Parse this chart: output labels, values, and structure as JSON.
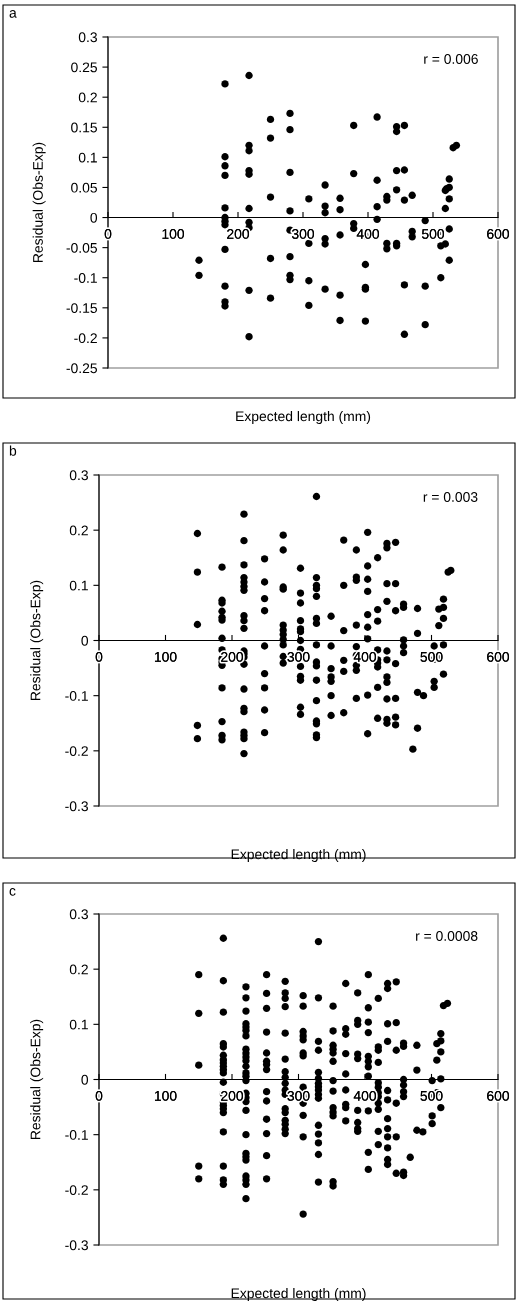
{
  "chart_data": [
    {
      "type": "scatter",
      "title": "a",
      "xlabel": "Expected length (mm)",
      "ylabel": "Residual (Obs-Exp)",
      "annotations": [
        "r = 0.006"
      ],
      "xlim": [
        0,
        600
      ],
      "xticks": [
        0,
        100,
        200,
        300,
        400,
        500,
        600
      ],
      "ylim": [
        -0.25,
        0.3
      ],
      "yticks": [
        -0.25,
        -0.2,
        -0.15,
        -0.1,
        -0.05,
        0,
        0.05,
        0.1,
        0.15,
        0.2,
        0.25,
        0.3
      ],
      "grid": false,
      "marker": "circle",
      "series": [
        {
          "color": "#000000",
          "x": [
            140,
            140,
            180,
            180,
            180,
            180,
            180,
            180,
            180,
            180,
            180,
            180,
            180,
            180,
            217,
            217,
            217,
            217,
            217,
            217,
            217,
            217,
            217,
            217,
            250,
            250,
            250,
            250,
            250,
            280,
            280,
            280,
            280,
            280,
            280,
            280,
            280,
            309,
            309,
            309,
            309,
            334,
            334,
            334,
            334,
            334,
            334,
            357,
            357,
            357,
            357,
            357,
            378,
            378,
            378,
            378,
            396,
            396,
            396,
            396,
            396,
            414,
            414,
            414,
            414,
            429,
            429,
            429,
            429,
            444,
            444,
            444,
            444,
            444,
            444,
            456,
            456,
            456,
            456,
            456,
            468,
            468,
            468,
            488,
            488,
            488,
            512,
            512,
            512,
            519,
            519,
            519,
            525,
            525,
            525,
            525,
            525,
            531,
            536,
            521
          ],
          "values": [
            -0.071,
            -0.096,
            0.222,
            0.101,
            0.086,
            0.07,
            0.016,
            0.0,
            -0.006,
            -0.012,
            -0.053,
            -0.114,
            -0.14,
            -0.147,
            0.236,
            0.12,
            0.111,
            0.078,
            0.072,
            0.015,
            -0.008,
            -0.017,
            -0.121,
            -0.198,
            0.163,
            0.132,
            0.034,
            -0.068,
            -0.134,
            0.173,
            0.146,
            0.075,
            0.011,
            -0.021,
            -0.065,
            -0.096,
            -0.103,
            0.031,
            -0.043,
            -0.105,
            -0.146,
            0.054,
            0.019,
            0.008,
            -0.035,
            -0.044,
            -0.119,
            0.032,
            0.013,
            -0.029,
            -0.129,
            -0.171,
            0.153,
            0.073,
            -0.01,
            -0.018,
            -0.03,
            -0.078,
            -0.116,
            -0.119,
            -0.172,
            0.167,
            0.062,
            0.018,
            -0.003,
            0.035,
            0.029,
            -0.043,
            -0.052,
            0.151,
            0.143,
            0.078,
            0.046,
            -0.043,
            -0.047,
            0.153,
            0.079,
            0.029,
            -0.112,
            -0.194,
            0.037,
            -0.023,
            -0.032,
            -0.005,
            -0.114,
            -0.178,
            -0.023,
            -0.047,
            -0.1,
            0.045,
            0.015,
            -0.044,
            0.064,
            0.05,
            0.031,
            -0.019,
            -0.071,
            0.116,
            0.12,
            0.048
          ]
        }
      ]
    },
    {
      "type": "scatter",
      "title": "b",
      "xlabel": "Expected length (mm)",
      "ylabel": "Residual (Obs-Exp)",
      "annotations": [
        "r = 0.003"
      ],
      "xlim": [
        0,
        600
      ],
      "xticks": [
        0,
        100,
        200,
        300,
        400,
        500,
        600
      ],
      "ylim": [
        -0.3,
        0.3
      ],
      "yticks": [
        -0.3,
        -0.2,
        -0.1,
        0,
        0.1,
        0.2,
        0.3
      ],
      "grid": false,
      "marker": "circle",
      "series": [
        {
          "color": "#000000",
          "x": [
            148,
            148,
            148,
            148,
            148,
            185,
            185,
            185,
            185,
            185,
            185,
            185,
            185,
            185,
            185,
            185,
            185,
            185,
            185,
            185,
            218,
            218,
            218,
            218,
            218,
            218,
            218,
            218,
            218,
            218,
            218,
            218,
            218,
            218,
            218,
            218,
            218,
            218,
            218,
            218,
            218,
            249,
            249,
            249,
            249,
            249,
            249,
            249,
            249,
            249,
            277,
            277,
            277,
            277,
            277,
            277,
            277,
            277,
            277,
            277,
            277,
            303,
            303,
            303,
            303,
            303,
            303,
            303,
            303,
            303,
            303,
            303,
            303,
            303,
            327,
            327,
            327,
            327,
            327,
            327,
            327,
            327,
            327,
            327,
            327,
            327,
            327,
            327,
            327,
            327,
            349,
            349,
            349,
            349,
            349,
            349,
            349,
            368,
            368,
            368,
            368,
            368,
            368,
            387,
            387,
            387,
            387,
            387,
            387,
            387,
            387,
            387,
            404,
            404,
            404,
            404,
            404,
            404,
            404,
            404,
            404,
            419,
            419,
            419,
            419,
            419,
            419,
            419,
            419,
            419,
            433,
            433,
            433,
            433,
            433,
            433,
            433,
            433,
            433,
            433,
            433,
            446,
            446,
            446,
            446,
            446,
            446,
            446,
            458,
            458,
            458,
            458,
            458,
            472,
            479,
            479,
            479,
            479,
            488,
            504,
            504,
            504,
            504,
            511,
            511,
            511,
            518,
            518,
            518,
            518,
            518,
            525,
            529
          ],
          "values": [
            0.194,
            0.124,
            0.029,
            -0.154,
            -0.178,
            0.133,
            0.073,
            0.068,
            0.053,
            0.042,
            0.037,
            0.004,
            -0.017,
            -0.033,
            -0.039,
            -0.045,
            -0.086,
            -0.147,
            -0.172,
            -0.18,
            0.229,
            0.181,
            0.137,
            0.114,
            0.106,
            0.098,
            0.091,
            0.045,
            0.036,
            0.022,
            -0.019,
            -0.024,
            -0.03,
            -0.043,
            -0.088,
            -0.123,
            -0.129,
            -0.166,
            -0.172,
            -0.178,
            -0.205,
            0.148,
            0.106,
            0.076,
            0.054,
            -0.01,
            -0.06,
            -0.086,
            -0.126,
            -0.167,
            0.191,
            0.164,
            0.097,
            0.093,
            0.028,
            0.019,
            0.011,
            0.002,
            -0.008,
            -0.029,
            -0.041,
            0.131,
            0.086,
            0.068,
            0.036,
            0.021,
            0.016,
            0.0,
            -0.016,
            -0.047,
            -0.065,
            -0.072,
            -0.121,
            -0.134,
            0.261,
            0.114,
            0.1,
            0.094,
            0.08,
            0.04,
            0.031,
            -0.008,
            -0.039,
            -0.046,
            -0.072,
            -0.109,
            -0.146,
            -0.151,
            -0.171,
            -0.176,
            0.044,
            -0.01,
            -0.051,
            -0.066,
            -0.074,
            -0.1,
            -0.136,
            0.182,
            0.1,
            0.018,
            -0.036,
            -0.056,
            -0.131,
            0.164,
            0.115,
            0.109,
            0.028,
            -0.011,
            -0.027,
            -0.045,
            -0.054,
            -0.105,
            0.196,
            0.135,
            0.111,
            0.089,
            0.047,
            0.024,
            0.003,
            -0.099,
            -0.169,
            0.15,
            0.056,
            0.035,
            -0.017,
            -0.035,
            -0.041,
            -0.048,
            -0.085,
            -0.141,
            0.176,
            0.168,
            0.103,
            0.071,
            -0.019,
            -0.035,
            -0.066,
            -0.076,
            -0.106,
            -0.143,
            -0.15,
            0.178,
            0.103,
            0.054,
            -0.042,
            -0.105,
            -0.139,
            -0.153,
            0.066,
            0.06,
            0.001,
            -0.01,
            -0.022,
            -0.197,
            0.058,
            0.013,
            -0.094,
            -0.159,
            -0.1,
            -0.01,
            -0.034,
            -0.074,
            -0.085,
            0.057,
            0.027,
            -0.033,
            0.075,
            0.06,
            0.04,
            -0.008,
            -0.061,
            0.124,
            0.127
          ]
        }
      ]
    },
    {
      "type": "scatter",
      "title": "c",
      "xlabel": "Expected length (mm)",
      "ylabel": "Residual (Obs-Exp)",
      "annotations": [
        "r = 0.0008"
      ],
      "xlim": [
        0,
        600
      ],
      "xticks": [
        0,
        100,
        200,
        300,
        400,
        500,
        600
      ],
      "ylim": [
        -0.3,
        0.3
      ],
      "yticks": [
        -0.3,
        -0.2,
        -0.1,
        0,
        0.1,
        0.2,
        0.3
      ],
      "grid": false,
      "marker": "circle",
      "series": [
        {
          "color": "#000000",
          "x": [
            150,
            150,
            150,
            150,
            150,
            187,
            187,
            187,
            187,
            187,
            187,
            187,
            187,
            187,
            187,
            187,
            187,
            187,
            187,
            187,
            187,
            187,
            187,
            187,
            187,
            187,
            221,
            221,
            221,
            221,
            221,
            221,
            221,
            221,
            221,
            221,
            221,
            221,
            221,
            221,
            221,
            221,
            221,
            221,
            221,
            221,
            221,
            221,
            221,
            221,
            221,
            221,
            221,
            252,
            252,
            252,
            252,
            252,
            252,
            252,
            252,
            252,
            252,
            252,
            252,
            252,
            252,
            280,
            280,
            280,
            280,
            280,
            280,
            280,
            280,
            280,
            280,
            280,
            280,
            280,
            280,
            280,
            280,
            280,
            307,
            307,
            307,
            307,
            307,
            307,
            307,
            307,
            307,
            307,
            307,
            307,
            307,
            307,
            330,
            330,
            330,
            330,
            330,
            330,
            330,
            330,
            330,
            330,
            330,
            330,
            330,
            330,
            330,
            330,
            352,
            352,
            352,
            352,
            352,
            352,
            352,
            352,
            352,
            352,
            352,
            352,
            352,
            371,
            371,
            371,
            371,
            371,
            371,
            371,
            371,
            371,
            389,
            389,
            389,
            389,
            389,
            389,
            389,
            389,
            389,
            405,
            405,
            405,
            405,
            405,
            405,
            405,
            405,
            405,
            405,
            405,
            420,
            420,
            420,
            420,
            420,
            420,
            420,
            420,
            420,
            420,
            420,
            420,
            434,
            434,
            434,
            434,
            434,
            434,
            434,
            434,
            434,
            434,
            434,
            434,
            447,
            447,
            447,
            447,
            447,
            447,
            458,
            458,
            458,
            458,
            458,
            458,
            458,
            458,
            468,
            478,
            478,
            478,
            487,
            501,
            501,
            501,
            501,
            508,
            508,
            508,
            514,
            514,
            514,
            514,
            514,
            518,
            524
          ],
          "values": [
            0.19,
            0.12,
            0.026,
            -0.157,
            -0.18,
            0.256,
            0.179,
            0.122,
            0.065,
            0.059,
            0.044,
            0.036,
            0.03,
            0.024,
            0.018,
            0.012,
            -0.005,
            -0.026,
            -0.041,
            -0.047,
            -0.053,
            -0.06,
            -0.095,
            -0.157,
            -0.182,
            -0.19,
            0.168,
            0.148,
            0.124,
            0.101,
            0.095,
            0.089,
            0.079,
            0.055,
            0.048,
            0.041,
            0.034,
            0.024,
            0.012,
            0.006,
            -0.002,
            -0.025,
            -0.033,
            -0.04,
            -0.056,
            -0.1,
            -0.134,
            -0.14,
            -0.146,
            -0.175,
            -0.182,
            -0.19,
            -0.216,
            0.19,
            0.156,
            0.129,
            0.086,
            0.048,
            0.033,
            0.027,
            0.018,
            -0.022,
            -0.039,
            -0.072,
            -0.098,
            -0.138,
            -0.18,
            0.178,
            0.157,
            0.147,
            0.132,
            0.084,
            0.037,
            0.014,
            0.004,
            -0.007,
            -0.019,
            -0.027,
            -0.053,
            -0.06,
            -0.074,
            -0.081,
            -0.09,
            -0.098,
            0.152,
            0.133,
            0.087,
            0.079,
            0.072,
            0.048,
            0.043,
            -0.014,
            -0.024,
            -0.031,
            -0.043,
            -0.065,
            -0.104,
            -0.244,
            0.25,
            0.148,
            0.069,
            0.053,
            0.013,
            0.002,
            -0.007,
            -0.013,
            -0.019,
            -0.027,
            -0.034,
            -0.083,
            -0.099,
            -0.115,
            -0.136,
            -0.186,
            0.133,
            0.088,
            0.062,
            0.055,
            0.048,
            0.033,
            -0.002,
            -0.021,
            -0.051,
            -0.059,
            -0.066,
            -0.185,
            -0.193,
            0.174,
            0.092,
            0.082,
            0.047,
            0.01,
            -0.019,
            -0.045,
            -0.051,
            -0.075,
            0.157,
            0.107,
            0.1,
            0.046,
            0.038,
            -0.056,
            -0.078,
            -0.089,
            -0.094,
            0.19,
            0.13,
            0.104,
            0.085,
            0.042,
            0.033,
            0.023,
            0.006,
            -0.057,
            -0.132,
            -0.163,
            0.147,
            0.059,
            0.053,
            0.031,
            -0.006,
            -0.014,
            -0.024,
            -0.031,
            -0.043,
            -0.054,
            -0.094,
            -0.118,
            0.174,
            0.165,
            0.101,
            0.069,
            -0.02,
            -0.037,
            -0.071,
            -0.089,
            -0.104,
            -0.124,
            -0.145,
            -0.154,
            0.177,
            0.103,
            0.053,
            -0.043,
            -0.104,
            -0.17,
            0.066,
            0.06,
            0.0,
            -0.01,
            -0.022,
            -0.031,
            -0.168,
            -0.174,
            -0.141,
            0.062,
            0.017,
            -0.092,
            -0.095,
            -0.002,
            -0.027,
            -0.066,
            -0.08,
            0.065,
            0.035,
            -0.024,
            0.083,
            0.07,
            0.05,
            0.001,
            -0.051,
            0.134,
            0.138
          ]
        }
      ]
    }
  ]
}
